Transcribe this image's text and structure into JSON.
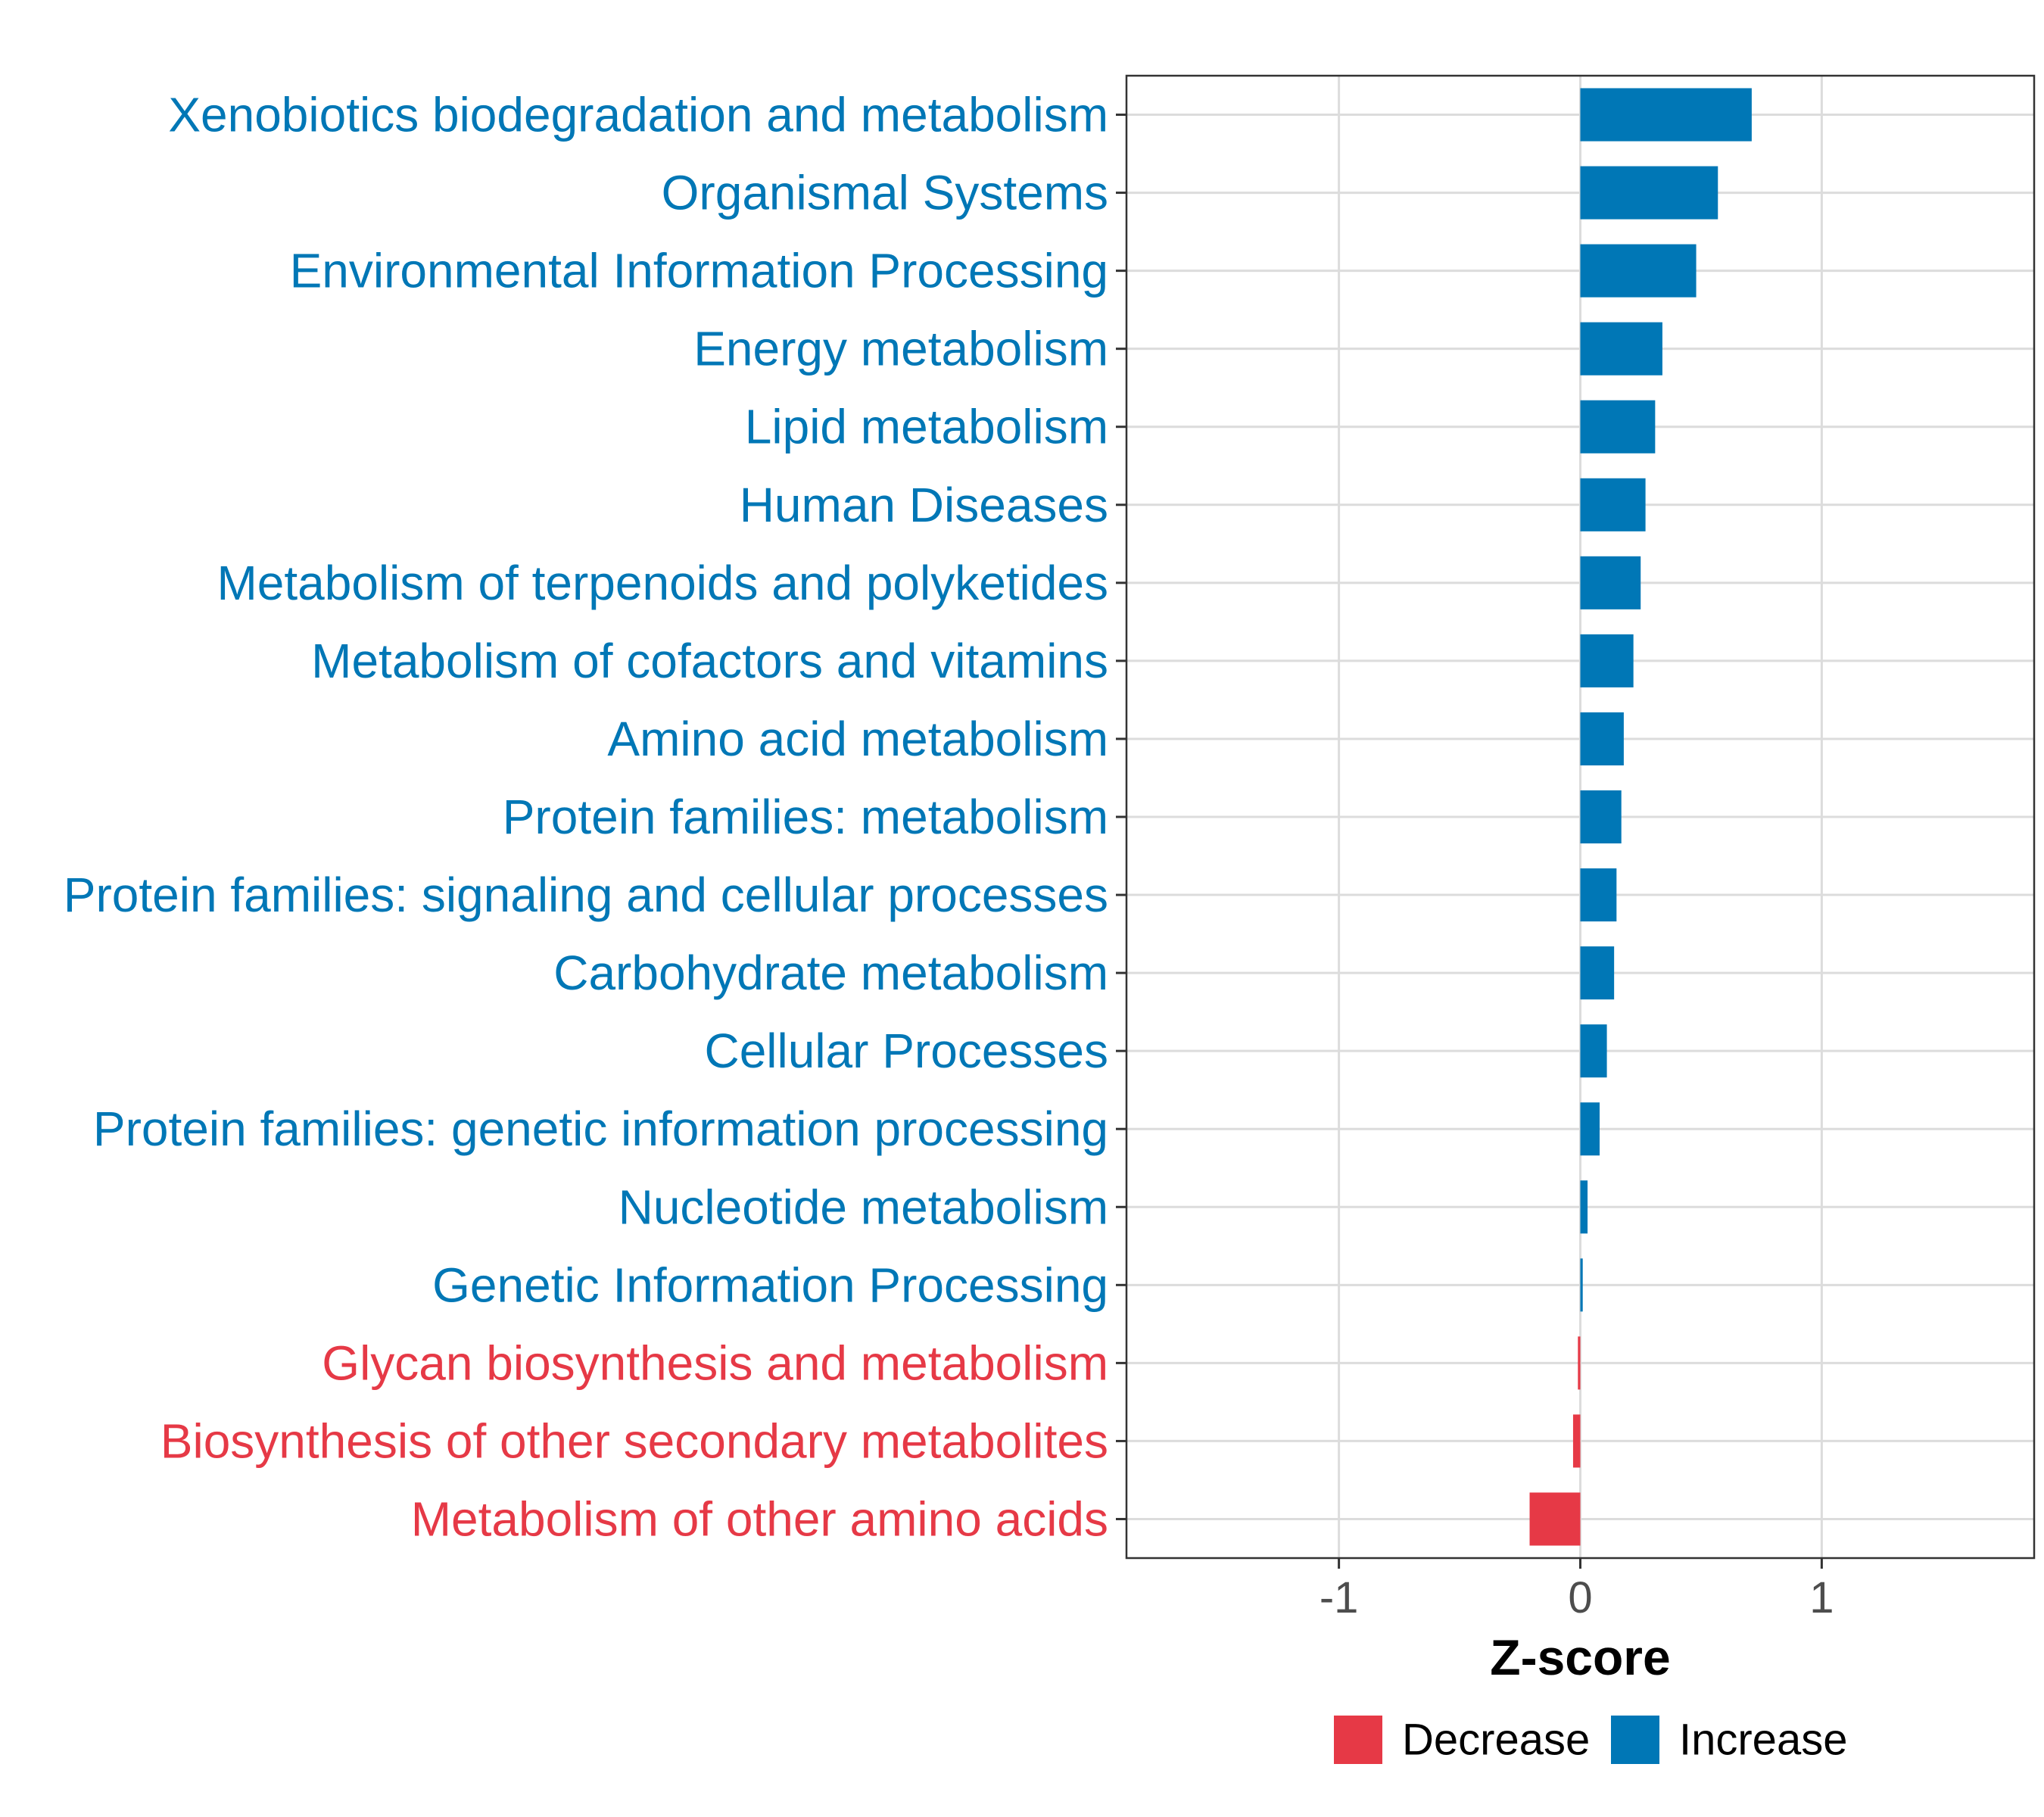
{
  "chart_data": {
    "type": "bar",
    "orientation": "horizontal",
    "title": "",
    "xlabel": "Z-score",
    "ylabel": "",
    "xlim": [
      -1.88,
      1.88
    ],
    "xticks": [
      -1,
      0,
      1
    ],
    "xtick_labels": [
      "-1",
      "0",
      "1"
    ],
    "grid": true,
    "legend_position": "bottom",
    "colors": {
      "Decrease": "#E63946",
      "Increase": "#0077B6"
    },
    "legend": [
      {
        "name": "Decrease",
        "color": "#E63946"
      },
      {
        "name": "Increase",
        "color": "#0077B6"
      }
    ],
    "categories": [
      "Xenobiotics biodegradation and metabolism",
      "Organismal Systems",
      "Environmental Information Processing",
      "Energy metabolism",
      "Lipid metabolism",
      "Human Diseases",
      "Metabolism of terpenoids and polyketides",
      "Metabolism of cofactors and vitamins",
      "Amino acid metabolism",
      "Protein families: metabolism",
      "Protein families: signaling and cellular processes",
      "Carbohydrate metabolism",
      "Cellular Processes",
      "Protein families: genetic information processing",
      "Nucleotide metabolism",
      "Genetic Information Processing",
      "Glycan biosynthesis and metabolism",
      "Biosynthesis of other secondary metabolites",
      "Metabolism of other amino acids"
    ],
    "values": [
      0.71,
      0.57,
      0.48,
      0.34,
      0.31,
      0.27,
      0.25,
      0.22,
      0.18,
      0.17,
      0.15,
      0.14,
      0.11,
      0.08,
      0.03,
      0.01,
      -0.01,
      -0.03,
      -0.21
    ],
    "groups": [
      "Increase",
      "Increase",
      "Increase",
      "Increase",
      "Increase",
      "Increase",
      "Increase",
      "Increase",
      "Increase",
      "Increase",
      "Increase",
      "Increase",
      "Increase",
      "Increase",
      "Increase",
      "Increase",
      "Decrease",
      "Decrease",
      "Decrease"
    ]
  }
}
